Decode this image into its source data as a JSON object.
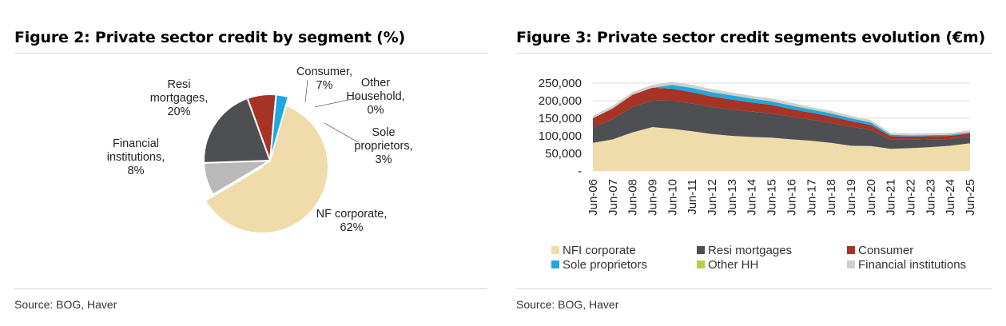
{
  "figure2": {
    "title": "Figure 2: Private sector credit by segment (%)",
    "source": "Source: BOG, Haver"
  },
  "figure3": {
    "title": "Figure 3: Private sector credit segments evolution (€m)",
    "source": "Source: BOG, Haver"
  },
  "chart_data": [
    {
      "type": "pie",
      "title": "Figure 2: Private sector credit by segment (%)",
      "slices": [
        {
          "label": "NF corporate",
          "value": 62,
          "display": "62%",
          "color": "#efdcaa"
        },
        {
          "label": "Financial institutions",
          "value": 8,
          "display": "8%",
          "color": "#b9b9b9"
        },
        {
          "label": "Resi mortgages",
          "value": 20,
          "display": "20%",
          "color": "#4d4f52"
        },
        {
          "label": "Consumer",
          "value": 7,
          "display": "7%",
          "color": "#a63324"
        },
        {
          "label": "Other Household",
          "value": 0,
          "display": "0%",
          "color": "#b8cf4a"
        },
        {
          "label": "Sole proprietors",
          "value": 3,
          "display": "3%",
          "color": "#1ea7e4"
        }
      ]
    },
    {
      "type": "area",
      "stacked": true,
      "title": "Figure 3: Private sector credit segments evolution (€m)",
      "ylim": [
        0,
        250000
      ],
      "y_ticks": [
        "250,000",
        "200,000",
        "150,000",
        "100,000",
        "50,000",
        "-"
      ],
      "categories": [
        "Jun-06",
        "Jun-07",
        "Jun-08",
        "Jun-09",
        "Jun-10",
        "Jun-11",
        "Jun-12",
        "Jun-13",
        "Jun-14",
        "Jun-15",
        "Jun-16",
        "Jun-17",
        "Jun-18",
        "Jun-19",
        "Jun-20",
        "Jun-21",
        "Jun-22",
        "Jun-23",
        "Jun-24",
        "Jun-25"
      ],
      "grid": true,
      "legend_position": "bottom",
      "series": [
        {
          "name": "NFI corporate",
          "color": "#efdcaa",
          "values": [
            80000,
            90000,
            110000,
            125000,
            120000,
            113000,
            105000,
            100000,
            97000,
            95000,
            90000,
            86000,
            80000,
            72000,
            71000,
            63000,
            65000,
            68000,
            72000,
            79000
          ]
        },
        {
          "name": "Resi mortgages",
          "color": "#4d4f52",
          "values": [
            45000,
            58000,
            72000,
            76000,
            80000,
            79000,
            77000,
            75000,
            72000,
            69000,
            64000,
            60000,
            57000,
            54000,
            46000,
            26000,
            24000,
            22000,
            19000,
            19000
          ]
        },
        {
          "name": "Consumer",
          "color": "#a63324",
          "values": [
            25000,
            30000,
            35000,
            36000,
            34000,
            32000,
            30000,
            28000,
            26000,
            24000,
            22000,
            20000,
            18000,
            16000,
            14000,
            10000,
            9000,
            9000,
            9000,
            9000
          ]
        },
        {
          "name": "Sole proprietors",
          "color": "#1ea7e4",
          "values": [
            0,
            0,
            0,
            0,
            11000,
            12000,
            12000,
            12000,
            11000,
            10000,
            10000,
            9000,
            9000,
            8000,
            7000,
            4000,
            3000,
            3000,
            3000,
            3000
          ]
        },
        {
          "name": "Other HH",
          "color": "#b8cf4a",
          "values": [
            0,
            0,
            0,
            0,
            1000,
            1000,
            1000,
            1000,
            1000,
            1000,
            1000,
            1000,
            1000,
            1000,
            1000,
            500,
            500,
            500,
            500,
            500
          ]
        },
        {
          "name": "Financial institutions",
          "color": "#cfcfcf",
          "values": [
            7000,
            7000,
            8000,
            8000,
            8000,
            8000,
            8000,
            7000,
            7000,
            7000,
            7000,
            6000,
            6000,
            6000,
            6000,
            5000,
            5000,
            5000,
            5000,
            5000
          ]
        }
      ]
    }
  ]
}
